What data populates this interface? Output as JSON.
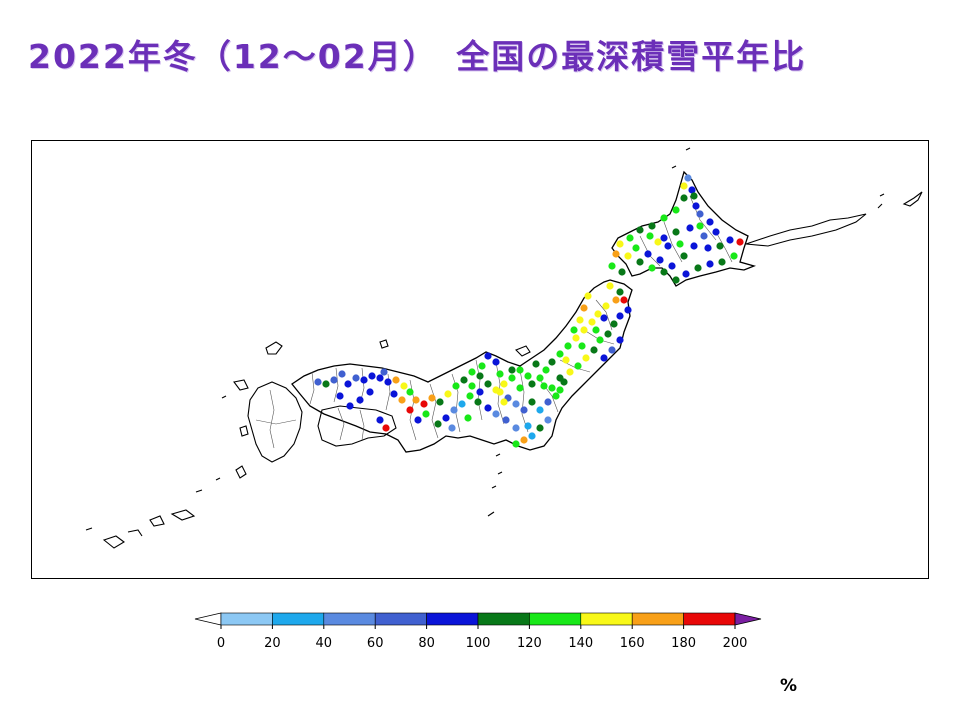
{
  "title": "2022年冬（12〜02月）　全国の最深積雪平年比",
  "legend": {
    "unit": "%",
    "ticks": [
      "0",
      "20",
      "40",
      "60",
      "80",
      "100",
      "120",
      "140",
      "160",
      "180",
      "200"
    ],
    "under_color": "#ffffff",
    "over_color": "#7b1fa2",
    "colors": [
      "#8cc8f4",
      "#1ea8ec",
      "#5a8ae0",
      "#4060d0",
      "#0a14d8",
      "#087818",
      "#18e818",
      "#f8f818",
      "#f8a018",
      "#e80808"
    ]
  },
  "stations": [
    [
      688,
      178,
      2
    ],
    [
      692,
      190,
      4
    ],
    [
      684,
      198,
      5
    ],
    [
      696,
      206,
      4
    ],
    [
      676,
      210,
      6
    ],
    [
      664,
      218,
      6
    ],
    [
      652,
      226,
      5
    ],
    [
      700,
      214,
      3
    ],
    [
      710,
      222,
      4
    ],
    [
      716,
      232,
      4
    ],
    [
      704,
      236,
      3
    ],
    [
      690,
      228,
      4
    ],
    [
      676,
      232,
      5
    ],
    [
      664,
      238,
      4
    ],
    [
      650,
      236,
      6
    ],
    [
      640,
      230,
      5
    ],
    [
      630,
      238,
      6
    ],
    [
      620,
      244,
      7
    ],
    [
      636,
      248,
      6
    ],
    [
      648,
      254,
      4
    ],
    [
      660,
      260,
      4
    ],
    [
      672,
      266,
      4
    ],
    [
      684,
      256,
      5
    ],
    [
      694,
      246,
      4
    ],
    [
      708,
      248,
      4
    ],
    [
      720,
      246,
      5
    ],
    [
      730,
      240,
      4
    ],
    [
      740,
      242,
      9
    ],
    [
      734,
      256,
      6
    ],
    [
      722,
      262,
      5
    ],
    [
      710,
      264,
      4
    ],
    [
      698,
      268,
      5
    ],
    [
      686,
      274,
      4
    ],
    [
      676,
      280,
      5
    ],
    [
      664,
      272,
      5
    ],
    [
      652,
      268,
      6
    ],
    [
      640,
      262,
      5
    ],
    [
      628,
      256,
      7
    ],
    [
      616,
      254,
      8
    ],
    [
      612,
      266,
      6
    ],
    [
      622,
      272,
      5
    ],
    [
      684,
      186,
      7
    ],
    [
      694,
      196,
      5
    ],
    [
      700,
      226,
      6
    ],
    [
      680,
      244,
      6
    ],
    [
      668,
      246,
      4
    ],
    [
      658,
      242,
      7
    ],
    [
      610,
      286,
      7
    ],
    [
      620,
      292,
      5
    ],
    [
      616,
      300,
      8
    ],
    [
      606,
      306,
      7
    ],
    [
      598,
      314,
      7
    ],
    [
      592,
      322,
      7
    ],
    [
      584,
      330,
      7
    ],
    [
      576,
      338,
      7
    ],
    [
      568,
      346,
      6
    ],
    [
      560,
      354,
      6
    ],
    [
      552,
      362,
      5
    ],
    [
      546,
      370,
      6
    ],
    [
      540,
      378,
      6
    ],
    [
      532,
      384,
      5
    ],
    [
      624,
      300,
      9
    ],
    [
      628,
      310,
      4
    ],
    [
      620,
      316,
      4
    ],
    [
      614,
      324,
      5
    ],
    [
      608,
      334,
      5
    ],
    [
      600,
      340,
      6
    ],
    [
      594,
      350,
      5
    ],
    [
      604,
      358,
      4
    ],
    [
      612,
      350,
      3
    ],
    [
      620,
      340,
      4
    ],
    [
      586,
      358,
      7
    ],
    [
      578,
      366,
      6
    ],
    [
      570,
      372,
      7
    ],
    [
      560,
      378,
      5
    ],
    [
      588,
      296,
      7
    ],
    [
      584,
      308,
      8
    ],
    [
      580,
      320,
      7
    ],
    [
      574,
      330,
      6
    ],
    [
      566,
      360,
      7
    ],
    [
      582,
      346,
      6
    ],
    [
      604,
      318,
      4
    ],
    [
      596,
      330,
      6
    ],
    [
      520,
      370,
      6
    ],
    [
      512,
      378,
      6
    ],
    [
      504,
      384,
      7
    ],
    [
      496,
      390,
      7
    ],
    [
      488,
      384,
      5
    ],
    [
      480,
      376,
      5
    ],
    [
      472,
      372,
      6
    ],
    [
      464,
      380,
      5
    ],
    [
      456,
      386,
      6
    ],
    [
      448,
      394,
      7
    ],
    [
      440,
      402,
      5
    ],
    [
      432,
      398,
      8
    ],
    [
      424,
      404,
      9
    ],
    [
      416,
      400,
      8
    ],
    [
      410,
      392,
      6
    ],
    [
      404,
      386,
      7
    ],
    [
      396,
      380,
      8
    ],
    [
      388,
      382,
      4
    ],
    [
      380,
      378,
      4
    ],
    [
      372,
      376,
      4
    ],
    [
      364,
      380,
      4
    ],
    [
      356,
      378,
      3
    ],
    [
      348,
      384,
      4
    ],
    [
      342,
      374,
      3
    ],
    [
      334,
      380,
      3
    ],
    [
      326,
      384,
      5
    ],
    [
      318,
      382,
      3
    ],
    [
      384,
      372,
      3
    ],
    [
      488,
      356,
      4
    ],
    [
      496,
      362,
      4
    ],
    [
      482,
      366,
      6
    ],
    [
      500,
      392,
      7
    ],
    [
      508,
      398,
      3
    ],
    [
      516,
      404,
      2
    ],
    [
      524,
      410,
      3
    ],
    [
      532,
      402,
      5
    ],
    [
      540,
      410,
      1
    ],
    [
      548,
      402,
      3
    ],
    [
      556,
      396,
      6
    ],
    [
      548,
      420,
      2
    ],
    [
      540,
      428,
      5
    ],
    [
      532,
      436,
      1
    ],
    [
      524,
      440,
      8
    ],
    [
      516,
      428,
      2
    ],
    [
      506,
      420,
      3
    ],
    [
      496,
      414,
      2
    ],
    [
      488,
      408,
      4
    ],
    [
      478,
      402,
      5
    ],
    [
      470,
      396,
      6
    ],
    [
      462,
      404,
      1
    ],
    [
      454,
      410,
      2
    ],
    [
      446,
      418,
      4
    ],
    [
      438,
      424,
      5
    ],
    [
      452,
      428,
      2
    ],
    [
      468,
      418,
      6
    ],
    [
      516,
      444,
      6
    ],
    [
      528,
      426,
      1
    ],
    [
      500,
      374,
      6
    ],
    [
      512,
      370,
      5
    ],
    [
      528,
      376,
      6
    ],
    [
      536,
      364,
      5
    ],
    [
      544,
      386,
      6
    ],
    [
      552,
      388,
      6
    ],
    [
      560,
      390,
      6
    ],
    [
      564,
      382,
      5
    ],
    [
      520,
      388,
      6
    ],
    [
      504,
      402,
      7
    ],
    [
      480,
      392,
      4
    ],
    [
      472,
      386,
      6
    ],
    [
      410,
      410,
      9
    ],
    [
      418,
      420,
      4
    ],
    [
      426,
      414,
      6
    ],
    [
      386,
      428,
      9
    ],
    [
      380,
      420,
      4
    ],
    [
      402,
      400,
      8
    ],
    [
      394,
      394,
      4
    ],
    [
      370,
      392,
      4
    ],
    [
      360,
      400,
      4
    ],
    [
      350,
      406,
      4
    ],
    [
      340,
      396,
      4
    ]
  ]
}
